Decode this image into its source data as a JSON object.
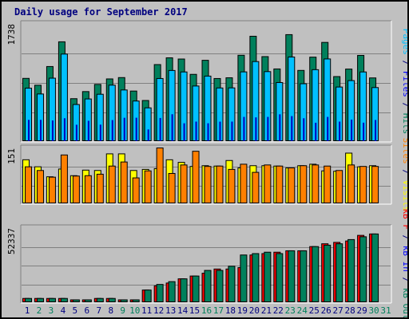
{
  "title": "Daily usage for September 2017",
  "colors": {
    "background": "#c0c0c0",
    "title": "#00007f",
    "hits": "#00805c",
    "files": "#00c0ff",
    "pages": "#00c0ff",
    "visits": "#ffff00",
    "sites": "#ff8000",
    "kbin": "#0000ff",
    "kbout": "#ff8000",
    "kbf": "#ff0000",
    "weekend_day": "#00805c",
    "weekday_day": "#00007f"
  },
  "panels": {
    "top": {
      "ymax_label": "1738",
      "right_labels": [
        {
          "text": "Pages",
          "color": "#00c0ff"
        },
        {
          "text": " / ",
          "color": "#00007f"
        },
        {
          "text": "Files",
          "color": "#0000ff"
        },
        {
          "text": " / ",
          "color": "#00007f"
        },
        {
          "text": "Hits",
          "color": "#00805c"
        }
      ]
    },
    "middle": {
      "ymax_label": "151",
      "right_labels": [
        {
          "text": "Sites",
          "color": "#ff8000"
        },
        {
          "text": " / ",
          "color": "#00007f"
        },
        {
          "text": "Visits",
          "color": "#ffff00"
        }
      ]
    },
    "bottom": {
      "ymax_label": "52337",
      "right_labels": [
        {
          "text": "kB F",
          "color": "#ff0000"
        },
        {
          "text": " / ",
          "color": "#00007f"
        },
        {
          "text": "kB In",
          "color": "#0000ff"
        },
        {
          "text": " / ",
          "color": "#00007f"
        },
        {
          "text": "kB Out",
          "color": "#00805c"
        }
      ]
    }
  },
  "chart_data": [
    {
      "type": "bar",
      "title": "Daily usage for September 2017",
      "categories": [
        "1",
        "2",
        "3",
        "4",
        "5",
        "6",
        "7",
        "8",
        "9",
        "10",
        "11",
        "12",
        "13",
        "14",
        "15",
        "16",
        "17",
        "18",
        "19",
        "20",
        "21",
        "22",
        "23",
        "24",
        "25",
        "26",
        "27",
        "28",
        "29",
        "30",
        "31"
      ],
      "weekend_days": [
        "2",
        "3",
        "9",
        "10",
        "16",
        "17",
        "23",
        "24",
        "30",
        "31"
      ],
      "ylim": [
        0,
        1738
      ],
      "ytick_label": "1738",
      "series": [
        {
          "name": "Hits",
          "values": [
            943,
            841,
            1120,
            1489,
            640,
            746,
            853,
            935,
            955,
            754,
            613,
            1149,
            1250,
            1232,
            1003,
            1213,
            941,
            952,
            1288,
            1572,
            1268,
            1084,
            1596,
            1062,
            1260,
            1480,
            970,
            1082,
            1286,
            950,
            0
          ]
        },
        {
          "name": "Files",
          "values": [
            797,
            710,
            946,
            1306,
            553,
            636,
            706,
            842,
            770,
            605,
            503,
            941,
            1061,
            1039,
            829,
            977,
            800,
            801,
            1040,
            1194,
            1044,
            881,
            1262,
            863,
            1073,
            1233,
            814,
            910,
            1039,
            806,
            0
          ]
        },
        {
          "name": "Pages",
          "values": [
            318,
            318,
            309,
            342,
            245,
            304,
            247,
            315,
            349,
            350,
            175,
            346,
            402,
            267,
            292,
            267,
            291,
            292,
            362,
            355,
            362,
            401,
            374,
            342,
            275,
            362,
            292,
            322,
            276,
            316,
            0
          ]
        }
      ]
    },
    {
      "type": "bar",
      "categories": [
        "1",
        "2",
        "3",
        "4",
        "5",
        "6",
        "7",
        "8",
        "9",
        "10",
        "11",
        "12",
        "13",
        "14",
        "15",
        "16",
        "17",
        "18",
        "19",
        "20",
        "21",
        "22",
        "23",
        "24",
        "25",
        "26",
        "27",
        "28",
        "29",
        "30",
        "31"
      ],
      "ylim": [
        0,
        151
      ],
      "ytick_label": "151",
      "series": [
        {
          "name": "Visits",
          "values": [
            119,
            100,
            73,
            94,
            76,
            91,
            90,
            135,
            135,
            90,
            93,
            95,
            119,
            112,
            101,
            103,
            102,
            117,
            97,
            103,
            103,
            102,
            97,
            103,
            107,
            89,
            88,
            137,
            100,
            103,
            0
          ]
        },
        {
          "name": "Sites",
          "values": [
            100,
            90,
            72,
            132,
            75,
            76,
            80,
            102,
            113,
            70,
            89,
            151,
            82,
            105,
            142,
            101,
            102,
            93,
            107,
            85,
            105,
            102,
            97,
            103,
            105,
            102,
            90,
            105,
            101,
            101,
            0
          ]
        }
      ]
    },
    {
      "type": "bar",
      "categories": [
        "1",
        "2",
        "3",
        "4",
        "5",
        "6",
        "7",
        "8",
        "9",
        "10",
        "11",
        "12",
        "13",
        "14",
        "15",
        "16",
        "17",
        "18",
        "19",
        "20",
        "21",
        "22",
        "23",
        "24",
        "25",
        "26",
        "27",
        "28",
        "29",
        "30",
        "31"
      ],
      "ylim": [
        0,
        52337
      ],
      "ytick_label": "52337",
      "series": [
        {
          "name": "kB F",
          "values": [
            3000,
            3000,
            3000,
            3000,
            2000,
            2000,
            3000,
            3000,
            2000,
            2000,
            9000,
            12000,
            14000,
            17000,
            19000,
            21000,
            24000,
            24000,
            25000,
            34000,
            35000,
            36000,
            37000,
            37000,
            40000,
            42000,
            43000,
            44000,
            48000,
            49000,
            0
          ]
        },
        {
          "name": "kB In",
          "values": [
            0,
            0,
            0,
            0,
            0,
            0,
            0,
            0,
            0,
            0,
            0,
            0,
            0,
            0,
            0,
            0,
            0,
            0,
            0,
            0,
            0,
            0,
            0,
            0,
            0,
            0,
            0,
            0,
            0,
            0,
            0
          ]
        },
        {
          "name": "kB Out",
          "values": [
            3000,
            3000,
            3000,
            3000,
            2000,
            2000,
            3000,
            3000,
            2000,
            2000,
            9000,
            13000,
            15000,
            17000,
            19000,
            23000,
            23000,
            26000,
            34000,
            35000,
            36000,
            35000,
            37000,
            37000,
            40000,
            41000,
            42000,
            45000,
            47000,
            49000,
            0
          ]
        }
      ]
    }
  ]
}
